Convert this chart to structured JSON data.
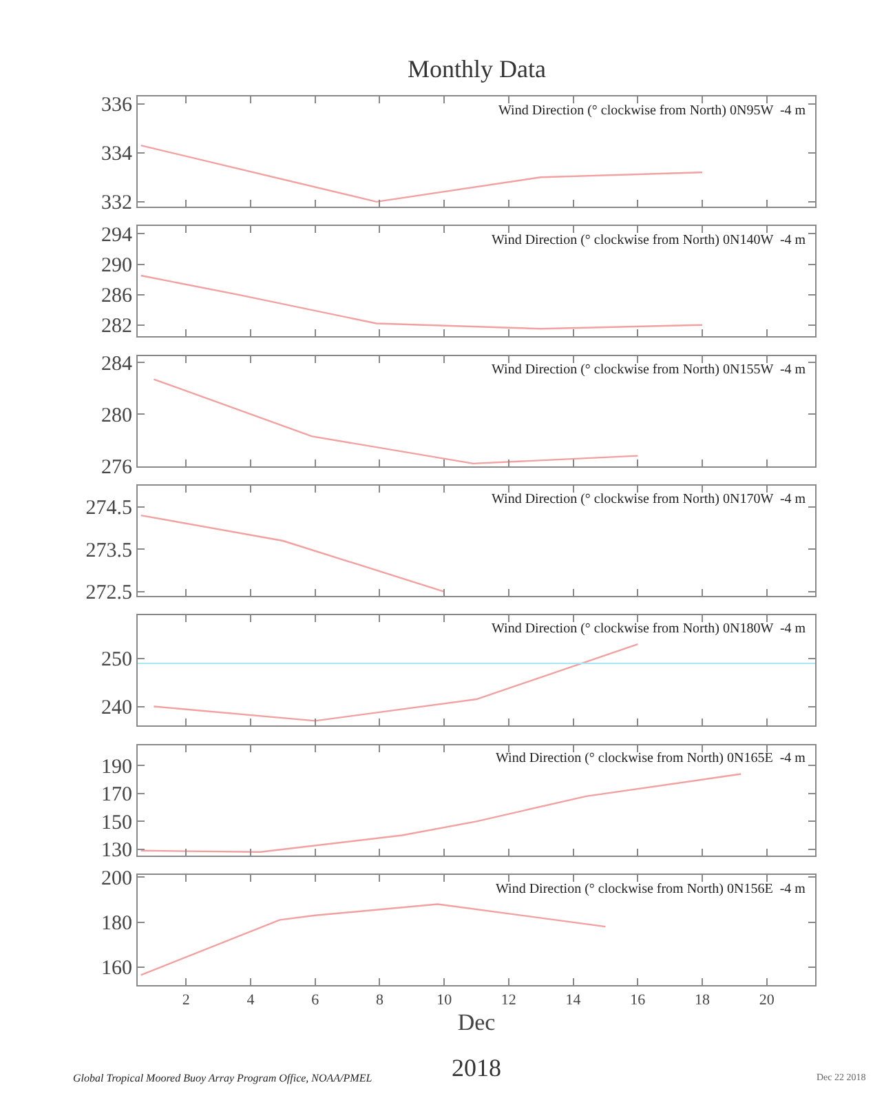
{
  "chart_data": [
    {
      "type": "line",
      "title": "Monthly Data",
      "subtitle": "Wind Direction (° clockwise from North) 0N95W  -4 m",
      "x": [
        0.6,
        7.9,
        13,
        18
      ],
      "series": [
        {
          "color": "#f2a0a0",
          "values": [
            334.3,
            332,
            333,
            333.2
          ]
        }
      ],
      "xlim": [
        0.5,
        21.5
      ],
      "ylim": [
        331.8,
        336.3
      ],
      "yticks": [
        332,
        334,
        336
      ],
      "tick_labels": "y"
    },
    {
      "type": "line",
      "subtitle": "Wind Direction (° clockwise from North) 0N140W  -4 m",
      "x": [
        0.6,
        3.6,
        7.9,
        13,
        18
      ],
      "series": [
        {
          "color": "#f2a0a0",
          "values": [
            288.5,
            286,
            282.2,
            281.5,
            282
          ]
        }
      ],
      "xlim": [
        0.5,
        21.5
      ],
      "ylim": [
        280.5,
        295
      ],
      "yticks": [
        282,
        286,
        290,
        294
      ],
      "tick_labels": "y"
    },
    {
      "type": "line",
      "subtitle": "Wind Direction (° clockwise from North) 0N155W  -4 m",
      "x": [
        1,
        5.9,
        10.9,
        16
      ],
      "series": [
        {
          "color": "#f2a0a0",
          "values": [
            282.7,
            278.3,
            276.2,
            276.8
          ]
        }
      ],
      "xlim": [
        0.5,
        21.5
      ],
      "ylim": [
        276,
        284.5
      ],
      "yticks": [
        276,
        280,
        284
      ],
      "tick_labels": "y"
    },
    {
      "type": "line",
      "subtitle": "Wind Direction (° clockwise from North) 0N170W  -4 m",
      "x": [
        0.6,
        5,
        10
      ],
      "series": [
        {
          "color": "#f2a0a0",
          "values": [
            274.3,
            273.7,
            272.5
          ]
        }
      ],
      "xlim": [
        0.5,
        21.5
      ],
      "ylim": [
        272.4,
        275
      ],
      "yticks": [
        272.5,
        273.5,
        274.5
      ],
      "tick_labels": "y"
    },
    {
      "type": "line",
      "subtitle": "Wind Direction (° clockwise from North) 0N180W  -4 m",
      "x": [
        1,
        6,
        11,
        16
      ],
      "series": [
        {
          "color": "#f2a0a0",
          "values": [
            240,
            237,
            241.5,
            253
          ]
        }
      ],
      "xlim": [
        0.5,
        21.5
      ],
      "ylim": [
        236,
        259
      ],
      "yticks": [
        240,
        250
      ],
      "ref_lines": [
        {
          "axis": "y",
          "value": 249,
          "color": "#a8e8f4"
        }
      ],
      "tick_labels": "y"
    },
    {
      "type": "line",
      "subtitle": "Wind Direction (° clockwise from North) 0N165E  -4 m",
      "x": [
        0.6,
        4.3,
        8.7,
        11,
        14.4,
        19.2
      ],
      "series": [
        {
          "color": "#f2a0a0",
          "values": [
            129,
            128,
            140,
            150,
            168,
            184
          ]
        }
      ],
      "xlim": [
        0.5,
        21.5
      ],
      "ylim": [
        125.6,
        204.7
      ],
      "yticks": [
        130,
        150,
        170,
        190
      ],
      "tick_labels": "y"
    },
    {
      "type": "line",
      "subtitle": "Wind Direction (° clockwise from North) 0N156E  -4 m",
      "xlabel": "Dec",
      "x": [
        0.6,
        4.9,
        6,
        9.8,
        15
      ],
      "series": [
        {
          "color": "#f2a0a0",
          "values": [
            156.5,
            181,
            183,
            188,
            178
          ]
        }
      ],
      "xlim": [
        0.5,
        21.5
      ],
      "xticks": [
        2,
        4,
        6,
        8,
        10,
        12,
        14,
        16,
        18,
        20
      ],
      "ylim": [
        152,
        201
      ],
      "yticks": [
        160,
        180,
        200
      ],
      "annotations": [
        "2018",
        "Global Tropical Moored Buoy Array Program Office, NOAA/PMEL",
        "Dec 22 2018"
      ]
    }
  ]
}
